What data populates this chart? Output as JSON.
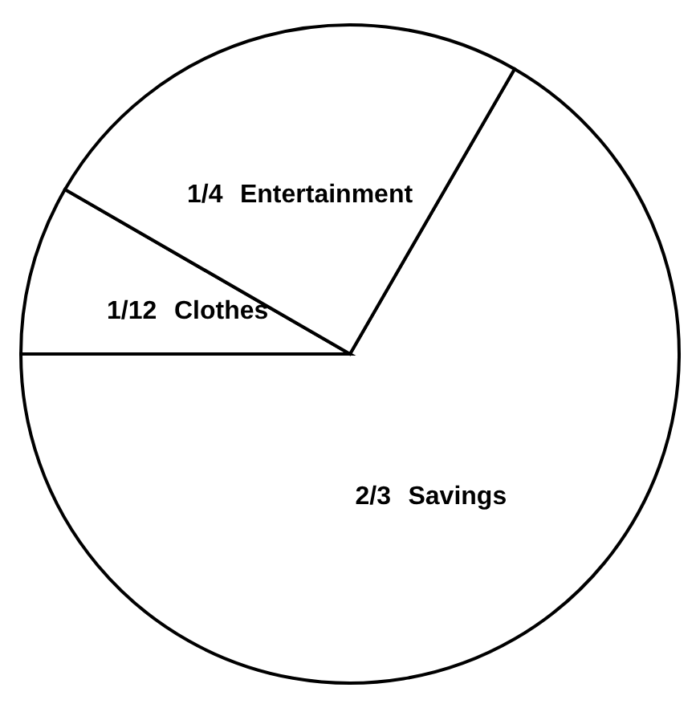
{
  "chart_data": {
    "type": "pie",
    "categories": [
      "Savings",
      "Clothes",
      "Entertainment"
    ],
    "values": [
      0.6667,
      0.0833,
      0.25
    ],
    "colors": [
      "#ffffff",
      "#ffffff",
      "#ffffff"
    ],
    "value_labels": [
      "2/3",
      "1/12",
      "1/4"
    ]
  }
}
